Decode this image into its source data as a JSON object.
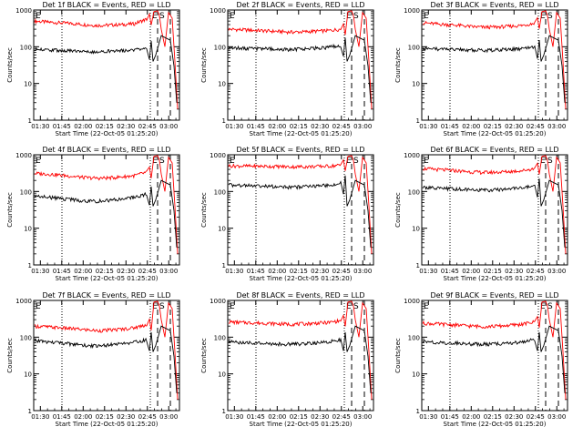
{
  "chart_data": [
    {
      "type": "line",
      "title": "Det 1f BLACK = Events, RED = LLD",
      "xlabel": "Start Time (22-Oct-05 01:25:20)",
      "ylabel": "Counts/sec",
      "yscale": "log",
      "ylim": [
        1,
        1000
      ],
      "x_ticks": [
        "01:30",
        "01:45",
        "02:00",
        "02:15",
        "02:30",
        "02:45",
        "03:00"
      ],
      "y_ticks": [
        "1",
        "10",
        "100",
        "1000"
      ],
      "markers": [
        "E",
        "S"
      ],
      "series": [
        {
          "color": "#ff0000",
          "values": [
            500,
            470,
            450,
            430,
            400,
            380,
            390,
            400,
            420,
            560
          ]
        },
        {
          "color": "#000000",
          "values": [
            85,
            82,
            80,
            78,
            75,
            74,
            77,
            80,
            82,
            90
          ]
        }
      ]
    },
    {
      "type": "line",
      "title": "Det 2f BLACK = Events, RED = LLD",
      "xlabel": "Start Time (22-Oct-05 01:25:20)",
      "ylabel": "Counts/sec",
      "yscale": "log",
      "ylim": [
        1,
        1000
      ],
      "x_ticks": [
        "01:30",
        "01:45",
        "02:00",
        "02:15",
        "02:30",
        "02:45",
        "03:00"
      ],
      "y_ticks": [
        "1",
        "10",
        "100",
        "1000"
      ],
      "markers": [
        "E",
        "S"
      ],
      "series": [
        {
          "color": "#ff0000",
          "values": [
            300,
            290,
            280,
            270,
            260,
            250,
            255,
            265,
            275,
            300
          ]
        },
        {
          "color": "#000000",
          "values": [
            95,
            92,
            90,
            88,
            85,
            84,
            88,
            92,
            96,
            110
          ]
        }
      ]
    },
    {
      "type": "line",
      "title": "Det 3f BLACK = Events, RED = LLD",
      "xlabel": "Start Time (22-Oct-05 01:25:20)",
      "ylabel": "Counts/sec",
      "yscale": "log",
      "ylim": [
        1,
        1000
      ],
      "x_ticks": [
        "01:30",
        "01:45",
        "02:00",
        "02:15",
        "02:30",
        "02:45",
        "03:00"
      ],
      "y_ticks": [
        "1",
        "10",
        "100",
        "1000"
      ],
      "markers": [
        "E",
        "S"
      ],
      "series": [
        {
          "color": "#ff0000",
          "values": [
            450,
            420,
            400,
            380,
            350,
            340,
            345,
            360,
            380,
            440
          ]
        },
        {
          "color": "#000000",
          "values": [
            90,
            88,
            86,
            84,
            82,
            80,
            82,
            85,
            88,
            95
          ]
        }
      ]
    },
    {
      "type": "line",
      "title": "Det 4f BLACK = Events, RED = LLD",
      "xlabel": "Start Time (22-Oct-05 01:25:20)",
      "ylabel": "Counts/sec",
      "yscale": "log",
      "ylim": [
        1,
        1000
      ],
      "x_ticks": [
        "01:30",
        "01:45",
        "02:00",
        "02:15",
        "02:30",
        "02:45",
        "03:00"
      ],
      "y_ticks": [
        "1",
        "10",
        "100",
        "1000"
      ],
      "markers": [
        "E",
        "S"
      ],
      "series": [
        {
          "color": "#ff0000",
          "values": [
            310,
            300,
            280,
            260,
            240,
            230,
            235,
            250,
            270,
            330
          ]
        },
        {
          "color": "#000000",
          "values": [
            75,
            70,
            65,
            60,
            55,
            54,
            58,
            62,
            70,
            85
          ]
        }
      ]
    },
    {
      "type": "line",
      "title": "Det 5f BLACK = Events, RED = LLD",
      "xlabel": "Start Time (22-Oct-05 01:25:20)",
      "ylabel": "Counts/sec",
      "yscale": "log",
      "ylim": [
        1,
        1000
      ],
      "x_ticks": [
        "01:30",
        "01:45",
        "02:00",
        "02:15",
        "02:30",
        "02:45",
        "03:00"
      ],
      "y_ticks": [
        "1",
        "10",
        "100",
        "1000"
      ],
      "markers": [
        "E",
        "S"
      ],
      "series": [
        {
          "color": "#ff0000",
          "values": [
            500,
            495,
            490,
            485,
            480,
            470,
            475,
            480,
            490,
            520
          ]
        },
        {
          "color": "#000000",
          "values": [
            150,
            148,
            145,
            140,
            135,
            130,
            135,
            140,
            150,
            170
          ]
        }
      ]
    },
    {
      "type": "line",
      "title": "Det 6f BLACK = Events, RED = LLD",
      "xlabel": "Start Time (22-Oct-05 01:25:20)",
      "ylabel": "Counts/sec",
      "yscale": "log",
      "ylim": [
        1,
        1000
      ],
      "x_ticks": [
        "01:30",
        "01:45",
        "02:00",
        "02:15",
        "02:30",
        "02:45",
        "03:00"
      ],
      "y_ticks": [
        "1",
        "10",
        "100",
        "1000"
      ],
      "markers": [
        "E",
        "S"
      ],
      "series": [
        {
          "color": "#ff0000",
          "values": [
            420,
            400,
            380,
            360,
            340,
            330,
            335,
            350,
            370,
            420
          ]
        },
        {
          "color": "#000000",
          "values": [
            130,
            125,
            120,
            115,
            110,
            108,
            112,
            118,
            125,
            140
          ]
        }
      ]
    },
    {
      "type": "line",
      "title": "Det 7f BLACK = Events, RED = LLD",
      "xlabel": "Start Time (22-Oct-05 01:25:20)",
      "ylabel": "Counts/sec",
      "yscale": "log",
      "ylim": [
        1,
        1000
      ],
      "x_ticks": [
        "01:30",
        "01:45",
        "02:00",
        "02:15",
        "02:30",
        "02:45",
        "03:00"
      ],
      "y_ticks": [
        "1",
        "10",
        "100",
        "1000"
      ],
      "markers": [
        "E",
        "S"
      ],
      "series": [
        {
          "color": "#ff0000",
          "values": [
            200,
            190,
            180,
            170,
            160,
            150,
            155,
            165,
            180,
            220
          ]
        },
        {
          "color": "#000000",
          "values": [
            80,
            75,
            70,
            65,
            60,
            58,
            62,
            66,
            72,
            85
          ]
        }
      ]
    },
    {
      "type": "line",
      "title": "Det 8f BLACK = Events, RED = LLD",
      "xlabel": "Start Time (22-Oct-05 01:25:20)",
      "ylabel": "Counts/sec",
      "yscale": "log",
      "ylim": [
        1,
        1000
      ],
      "x_ticks": [
        "01:30",
        "01:45",
        "02:00",
        "02:15",
        "02:30",
        "02:45",
        "03:00"
      ],
      "y_ticks": [
        "1",
        "10",
        "100",
        "1000"
      ],
      "markers": [
        "E",
        "S"
      ],
      "series": [
        {
          "color": "#ff0000",
          "values": [
            260,
            250,
            245,
            240,
            230,
            225,
            230,
            240,
            250,
            280
          ]
        },
        {
          "color": "#000000",
          "values": [
            75,
            72,
            70,
            68,
            65,
            64,
            66,
            70,
            74,
            85
          ]
        }
      ]
    },
    {
      "type": "line",
      "title": "Det 9f BLACK = Events, RED = LLD",
      "xlabel": "Start Time (22-Oct-05 01:25:20)",
      "ylabel": "Counts/sec",
      "yscale": "log",
      "ylim": [
        1,
        1000
      ],
      "x_ticks": [
        "01:30",
        "01:45",
        "02:00",
        "02:15",
        "02:30",
        "02:45",
        "03:00"
      ],
      "y_ticks": [
        "1",
        "10",
        "100",
        "1000"
      ],
      "markers": [
        "E",
        "S"
      ],
      "series": [
        {
          "color": "#ff0000",
          "values": [
            240,
            230,
            220,
            210,
            200,
            195,
            200,
            210,
            225,
            260
          ]
        },
        {
          "color": "#000000",
          "values": [
            75,
            72,
            70,
            68,
            65,
            64,
            66,
            70,
            74,
            85
          ]
        }
      ]
    }
  ]
}
